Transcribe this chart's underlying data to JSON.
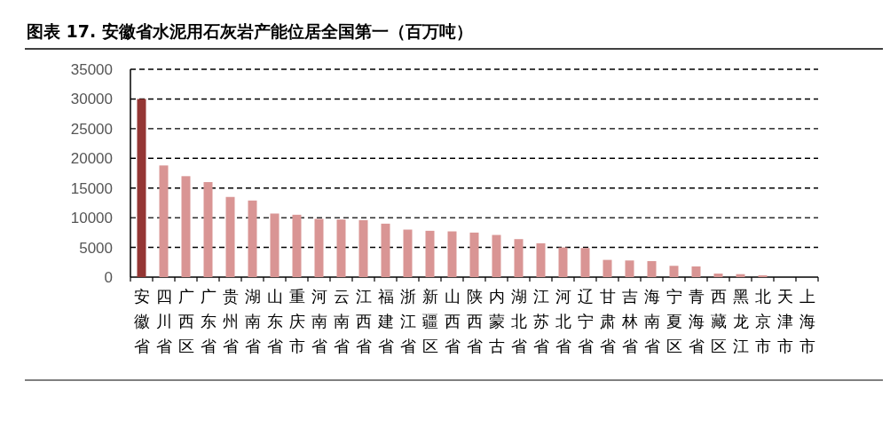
{
  "chart_data": {
    "type": "bar",
    "title": "图表 17. 安徽省水泥用石灰岩产能位居全国第一（百万吨）",
    "categories": [
      "安徽省",
      "四川省",
      "广西区",
      "广东省",
      "贵州省",
      "湖南省",
      "山东省",
      "重庆市",
      "河南省",
      "云南省",
      "江西省",
      "福建省",
      "浙江省",
      "新疆区",
      "山西省",
      "陕西省",
      "内蒙古",
      "湖北省",
      "江苏省",
      "河北省",
      "辽宁省",
      "甘肃省",
      "吉林省",
      "海南省",
      "宁夏区",
      "青海省",
      "西藏区",
      "黑龙江",
      "北京市",
      "天津市",
      "上海市"
    ],
    "values": [
      30000,
      18800,
      17000,
      16000,
      13500,
      12900,
      10700,
      10500,
      9800,
      9700,
      9600,
      9000,
      8000,
      7800,
      7700,
      7500,
      7100,
      6400,
      5700,
      5000,
      4900,
      2900,
      2800,
      2700,
      1900,
      1800,
      600,
      500,
      300,
      0,
      0
    ],
    "colors": [
      "#943634",
      "#d99594",
      "#d99594",
      "#d99594",
      "#d99594",
      "#d99594",
      "#d99594",
      "#d99594",
      "#d99594",
      "#d99594",
      "#d99594",
      "#d99594",
      "#d99594",
      "#d99594",
      "#d99594",
      "#d99594",
      "#d99594",
      "#d99594",
      "#d99594",
      "#d99594",
      "#d99594",
      "#d99594",
      "#d99594",
      "#d99594",
      "#d99594",
      "#d99594",
      "#d99594",
      "#d99594",
      "#d99594",
      "#d99594",
      "#d99594"
    ],
    "ylim": [
      0,
      35000
    ],
    "yticks": [
      0,
      5000,
      10000,
      15000,
      20000,
      25000,
      30000,
      35000
    ],
    "grid": "y",
    "line_style": "dashed"
  }
}
